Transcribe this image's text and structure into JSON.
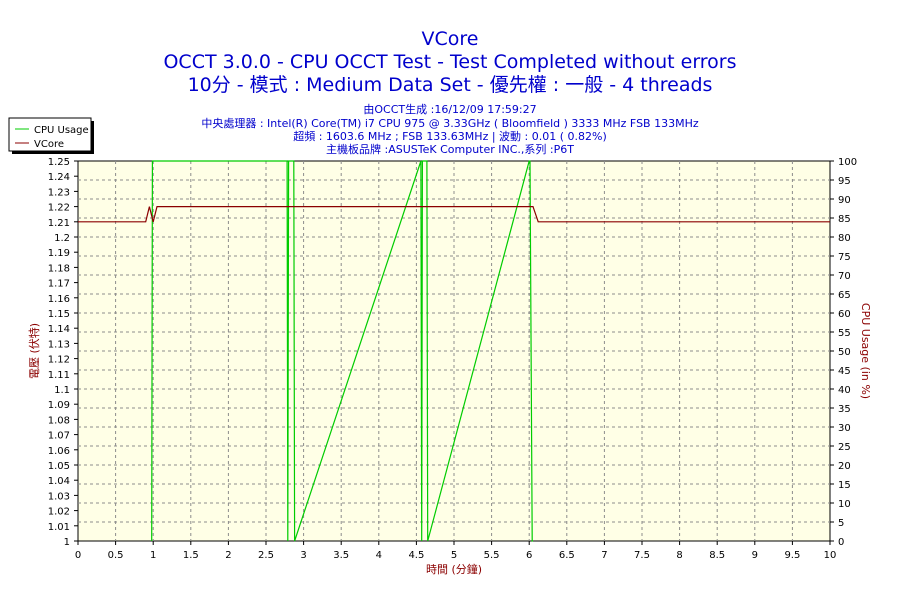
{
  "chart_data": {
    "type": "line",
    "title": "VCore",
    "subtitle_lines": [
      "OCCT 3.0.0 - CPU OCCT Test - Test Completed without errors",
      "10分 - 模式 : Medium Data Set - 優先權 : 一般 - 4 threads"
    ],
    "info_lines": [
      "由OCCT生成 :16/12/09 17:59:27",
      "中央處理器 : Intel(R) Core(TM) i7 CPU 975 @ 3.33GHz ( Bloomfield ) 3333 MHz FSB 133MHz",
      "超頻 : 1603.6 MHz ; FSB 133.63MHz | 波動 : 0.01 ( 0.82%)",
      "主機板品牌 :ASUSTeK Computer INC.,系列 :P6T"
    ],
    "xlabel": "時間 (分鐘)",
    "ylabel_left": "電壓 (伏特)",
    "ylabel_right": "CPU Usage (in %)",
    "xlim": [
      0,
      10
    ],
    "ylim_left": [
      1,
      1.25
    ],
    "ylim_right": [
      0,
      100
    ],
    "x_ticks": [
      "0",
      "0.5",
      "1",
      "1.5",
      "2",
      "2.5",
      "3",
      "3.5",
      "4",
      "4.5",
      "5",
      "5.5",
      "6",
      "6.5",
      "7",
      "7.5",
      "8",
      "8.5",
      "9",
      "9.5",
      "10"
    ],
    "y_left_ticks": [
      "1",
      "1.01",
      "1.02",
      "1.03",
      "1.04",
      "1.05",
      "1.06",
      "1.07",
      "1.08",
      "1.09",
      "1.1",
      "1.11",
      "1.12",
      "1.13",
      "1.14",
      "1.15",
      "1.16",
      "1.17",
      "1.18",
      "1.19",
      "1.2",
      "1.21",
      "1.22",
      "1.23",
      "1.24",
      "1.25"
    ],
    "y_right_ticks": [
      "0",
      "5",
      "10",
      "15",
      "20",
      "25",
      "30",
      "35",
      "40",
      "45",
      "50",
      "55",
      "60",
      "65",
      "70",
      "75",
      "80",
      "85",
      "90",
      "95",
      "100"
    ],
    "grid": true,
    "legend_position": "top-left",
    "series": [
      {
        "name": "CPU Usage",
        "axis": "right",
        "color": "#00cc00",
        "x": [
          0.98,
          0.99,
          1.05,
          2.78,
          2.79,
          2.8,
          2.87,
          2.88,
          4.56,
          4.57,
          4.58,
          4.64,
          4.65,
          6.0,
          6.01,
          6.04,
          6.05
        ],
        "y": [
          0,
          100,
          100,
          100,
          0,
          100,
          100,
          0,
          100,
          0,
          100,
          100,
          0,
          100,
          100,
          0,
          0
        ]
      },
      {
        "name": "VCore",
        "axis": "left",
        "color": "#8b0000",
        "x": [
          0,
          0.9,
          0.95,
          1.0,
          1.05,
          6.05,
          6.12,
          10
        ],
        "y": [
          1.21,
          1.21,
          1.22,
          1.21,
          1.22,
          1.22,
          1.21,
          1.21
        ]
      }
    ]
  }
}
